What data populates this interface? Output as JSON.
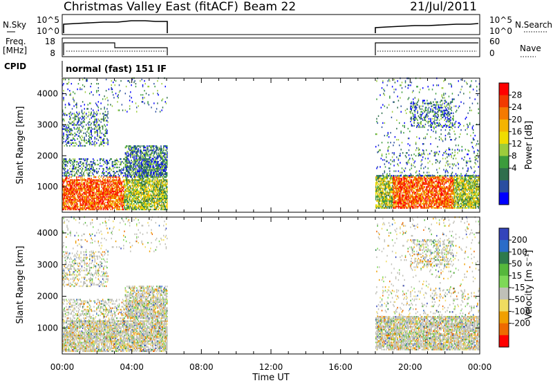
{
  "header": {
    "title": "Christmas Valley East (fitACF)",
    "beam": "Beam 22",
    "date": "21/Jul/2011"
  },
  "top_panels": {
    "nsky_label": "N.Sky",
    "nsky_ticks": [
      "10^5",
      "10^0"
    ],
    "nsearch_label": "N.Search",
    "nsearch_ticks": [
      "10^5",
      "10^0"
    ],
    "freq_label_1": "Freq.",
    "freq_label_2": "[MHz]",
    "freq_ticks": [
      "18",
      "8"
    ],
    "nave_label": "Nave",
    "nave_ticks": [
      "60",
      "0"
    ],
    "cpid_label": "CPID",
    "cpid_text": "normal (fast) 151 IF"
  },
  "power_colorbar": {
    "label": "Power [dB]",
    "ticks": [
      "28",
      "24",
      "20",
      "16",
      "12",
      "8",
      "4"
    ],
    "colors": [
      "#ff0000",
      "#f23a00",
      "#f47a00",
      "#f4b400",
      "#f0dc00",
      "#9ccc3c",
      "#3c9c3c",
      "#2f6e4c",
      "#2a4ea0",
      "#0000ff"
    ]
  },
  "velocity_colorbar": {
    "label": "Velocity [m s⁻¹]",
    "ticks": [
      "200",
      "100",
      "50",
      "15",
      "-15",
      "-50",
      "-100",
      "-200"
    ],
    "colors": [
      "#3344bb",
      "#2a6cc8",
      "#2e7a4c",
      "#55b83c",
      "#7ed858",
      "#c0c0b8",
      "#f0dc60",
      "#f0a000",
      "#ee6a00",
      "#ff0000"
    ]
  },
  "chart_data": [
    {
      "type": "heatmap",
      "panel": "power",
      "ylabel": "Slant Range [km]",
      "xlabel": "Time UT",
      "x_ticks": [
        "00:00",
        "04:00",
        "08:00",
        "12:00",
        "16:00",
        "20:00",
        "00:00"
      ],
      "y_ticks": [
        "1000",
        "2000",
        "3000",
        "4000"
      ],
      "xlim_hours": [
        0,
        24
      ],
      "ylim_km": [
        180,
        4500
      ],
      "data_intervals_hours": [
        [
          0,
          6
        ],
        [
          18,
          24
        ]
      ]
    },
    {
      "type": "heatmap",
      "panel": "velocity",
      "ylabel": "Slant Range [km]",
      "xlabel": "Time UT",
      "x_ticks": [
        "00:00",
        "04:00",
        "08:00",
        "12:00",
        "16:00",
        "20:00",
        "00:00"
      ],
      "y_ticks": [
        "1000",
        "2000",
        "3000",
        "4000"
      ],
      "xlim_hours": [
        0,
        24
      ],
      "ylim_km": [
        180,
        4500
      ],
      "data_intervals_hours": [
        [
          0,
          6
        ],
        [
          18,
          24
        ]
      ]
    }
  ],
  "footer": {
    "xlabel": "Time UT",
    "x_ticks": [
      "00:00",
      "04:00",
      "08:00",
      "12:00",
      "16:00",
      "20:00",
      "00:00"
    ]
  }
}
